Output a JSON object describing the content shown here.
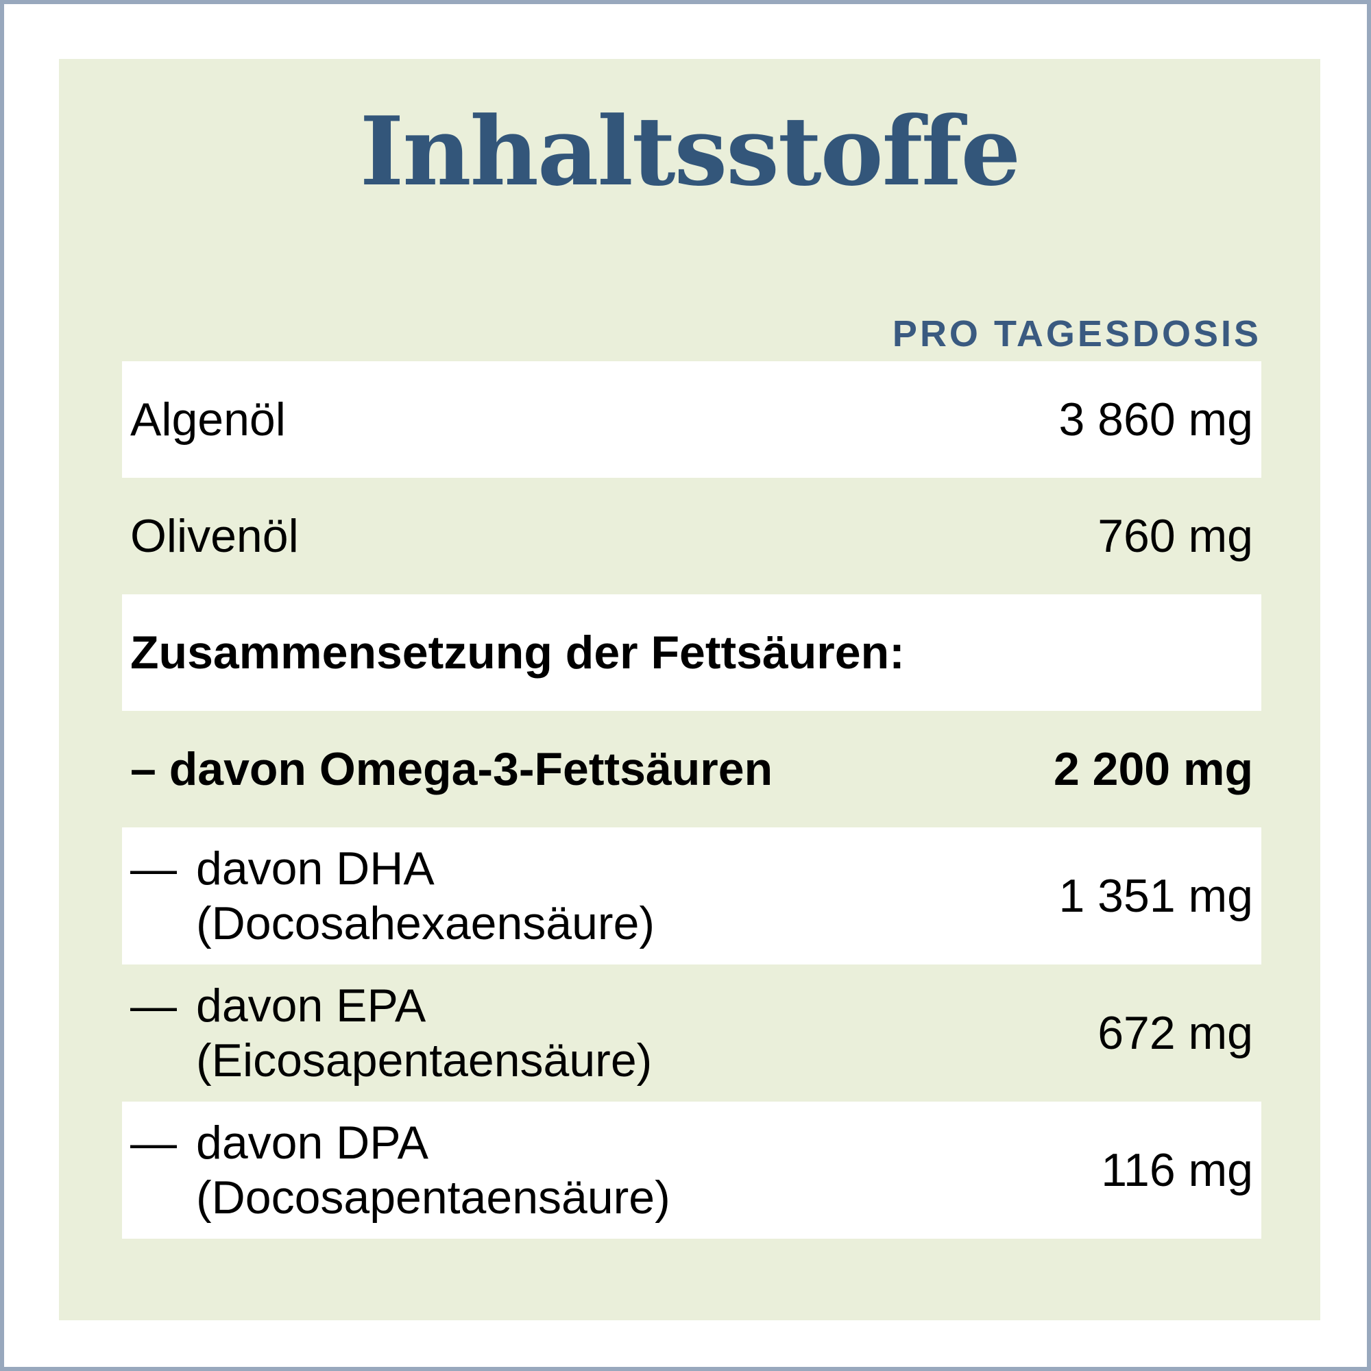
{
  "title": "Inhaltsstoffe",
  "column_header": "PRO TAGESDOSIS",
  "colors": {
    "title": "#33567a",
    "panel": "#eaefda",
    "border": "#98a8bd"
  },
  "rows": [
    {
      "label": "Algenöl",
      "value": "3 860 mg"
    },
    {
      "label": "Olivenöl",
      "value": "760 mg"
    },
    {
      "label": "Zusammensetzung der Fettsäuren:",
      "value": ""
    },
    {
      "label": "– davon Omega-3-Fettsäuren",
      "value": "2 200 mg"
    },
    {
      "dash": "—",
      "label": "davon DHA",
      "label2": "(Docosahexaensäure)",
      "value": "1 351 mg"
    },
    {
      "dash": "—",
      "label": "davon EPA",
      "label2": "(Eicosapentaensäure)",
      "value": "672 mg"
    },
    {
      "dash": "—",
      "label": "davon DPA",
      "label2": "(Docosapentaensäure)",
      "value": "116 mg"
    }
  ]
}
